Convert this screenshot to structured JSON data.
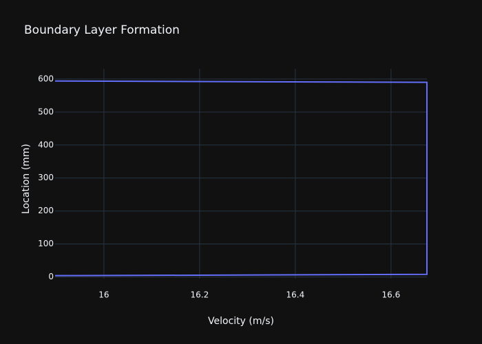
{
  "chart_data": {
    "type": "line",
    "title": "Boundary Layer Formation",
    "x_label": "Velocity (m/s)",
    "y_label": "Location (mm)",
    "series": [
      {
        "color": "#636efa",
        "x": [
          15.898,
          16.675,
          16.675,
          15.898
        ],
        "values": [
          594,
          590,
          8,
          4
        ]
      }
    ],
    "xlim": [
      15.898,
      16.675
    ],
    "ylim": [
      -5,
      631
    ],
    "xticks": [
      16,
      16.2,
      16.4,
      16.6
    ],
    "yticks": [
      0,
      100,
      200,
      300,
      400,
      500,
      600
    ],
    "grid": true
  }
}
